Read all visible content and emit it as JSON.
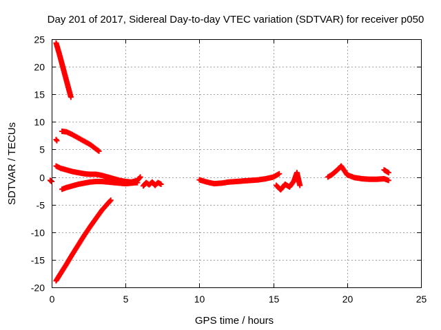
{
  "chart_data": {
    "type": "scatter",
    "title": "Day 201 of 2017, Sidereal Day-to-day VTEC variation (SDTVAR) for receiver p050",
    "xlabel": "GPS time / hours",
    "ylabel": "SDTVAR / TECUs",
    "xlim": [
      0,
      25
    ],
    "ylim": [
      -20,
      25
    ],
    "xticks": [
      0,
      5,
      10,
      15,
      20,
      25
    ],
    "yticks": [
      -20,
      -15,
      -10,
      -5,
      0,
      5,
      10,
      15,
      20,
      25
    ],
    "xtick_labels": [
      "0",
      "5",
      "10",
      "15",
      "20",
      "25"
    ],
    "ytick_labels": [
      "-20",
      "-15",
      "-10",
      "-5",
      "0",
      "5",
      "10",
      "15",
      "20",
      "25"
    ],
    "grid": true,
    "marker": "+",
    "color": "#ff0000",
    "series": [
      {
        "segments": [
          {
            "x": [
              0.3,
              0.5,
              0.7,
              0.9,
              1.1,
              1.3
            ],
            "y": [
              24.3,
              22.5,
              20.5,
              18.5,
              16.5,
              14.5
            ]
          },
          {
            "x": [
              0.3,
              0.35
            ],
            "y": [
              6.8,
              6.6
            ]
          },
          {
            "x": [
              0.7,
              1.0,
              1.4,
              1.8,
              2.2,
              2.6,
              3.0,
              3.2
            ],
            "y": [
              8.3,
              8.2,
              7.7,
              7.1,
              6.5,
              5.9,
              5.1,
              4.7
            ]
          },
          {
            "x": [
              -0.1,
              0.0
            ],
            "y": [
              -0.6,
              -0.8
            ]
          },
          {
            "x": [
              0.3,
              0.6,
              1.0,
              1.4,
              1.8,
              2.2,
              2.6,
              3.0,
              3.4,
              3.8,
              4.2,
              4.6,
              5.0,
              5.4,
              5.8,
              6.0
            ],
            "y": [
              2.0,
              1.6,
              1.3,
              1.0,
              0.8,
              0.6,
              0.5,
              0.5,
              0.3,
              0.0,
              -0.3,
              -0.6,
              -0.8,
              -0.9,
              -0.6,
              0.0
            ]
          },
          {
            "x": [
              0.7,
              1.0,
              1.4,
              1.8,
              2.2,
              2.6,
              3.0,
              3.4,
              3.8,
              4.2,
              4.6,
              5.0,
              5.4,
              5.8
            ],
            "y": [
              -2.2,
              -1.9,
              -1.6,
              -1.3,
              -1.1,
              -0.9,
              -0.8,
              -0.8,
              -0.9,
              -1.0,
              -1.1,
              -1.2,
              -1.1,
              -1.0
            ]
          },
          {
            "x": [
              6.2,
              6.4,
              6.6,
              6.8,
              7.0,
              7.2,
              7.4
            ],
            "y": [
              -1.6,
              -1.0,
              -1.4,
              -0.9,
              -1.5,
              -1.0,
              -1.3
            ]
          },
          {
            "x": [
              0.3,
              0.6,
              1.0,
              1.4,
              1.8,
              2.2,
              2.6,
              3.0,
              3.4,
              3.8,
              4.0
            ],
            "y": [
              -18.8,
              -17.5,
              -15.8,
              -14.0,
              -12.3,
              -10.6,
              -9.0,
              -7.5,
              -6.0,
              -4.8,
              -4.2
            ]
          },
          {
            "x": [
              10.0,
              10.5,
              11.0,
              11.5,
              12.0,
              12.5,
              13.0,
              13.5,
              14.0,
              14.5,
              15.0,
              15.4
            ],
            "y": [
              -0.5,
              -0.9,
              -1.2,
              -1.1,
              -0.9,
              -0.8,
              -0.7,
              -0.6,
              -0.5,
              -0.3,
              0.0,
              0.6
            ]
          },
          {
            "x": [
              15.2,
              15.5,
              15.8,
              16.1,
              16.4,
              16.6,
              16.8
            ],
            "y": [
              -1.5,
              -2.3,
              -1.3,
              -1.8,
              -0.7,
              0.8,
              -1.5
            ]
          },
          {
            "x": [
              18.7,
              19.0,
              19.3,
              19.6,
              20.0,
              20.5,
              21.0,
              21.5,
              22.0,
              22.5,
              22.8
            ],
            "y": [
              0.0,
              0.5,
              1.2,
              2.0,
              0.4,
              -0.1,
              -0.3,
              -0.4,
              -0.4,
              -0.3,
              -0.6
            ]
          },
          {
            "x": [
              22.5,
              22.8
            ],
            "y": [
              1.3,
              0.8
            ]
          }
        ]
      }
    ]
  }
}
